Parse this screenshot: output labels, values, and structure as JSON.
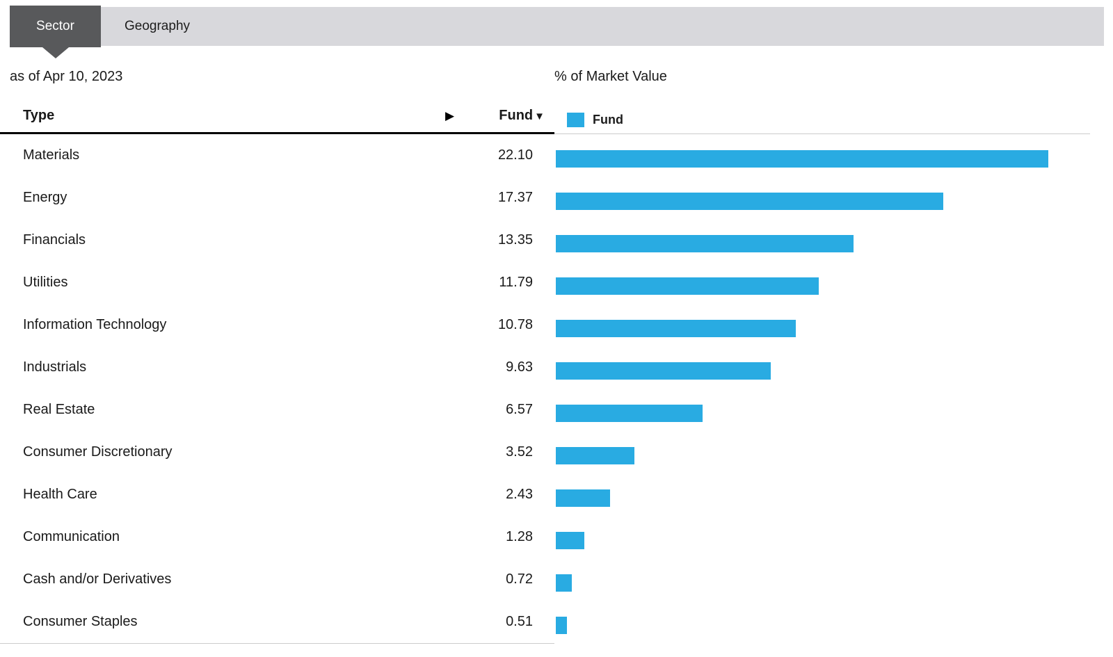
{
  "tabs": [
    {
      "id": "sector",
      "label": "Sector",
      "active": true
    },
    {
      "id": "geography",
      "label": "Geography",
      "active": false
    }
  ],
  "as_of": "as of Apr 10, 2023",
  "table_header": {
    "type": "Type",
    "fund": "Fund",
    "sort_indicator": "▼",
    "expand_icon": "▶"
  },
  "chart_header": {
    "title": "% of Market Value",
    "legend_label": "Fund"
  },
  "colors": {
    "bar": "#29abe2",
    "active_tab": "#58595b",
    "tab_strip": "#d8d8dc"
  },
  "chart_data": {
    "type": "bar",
    "orientation": "horizontal",
    "title": "% of Market Value",
    "series_name": "Fund",
    "categories": [
      "Materials",
      "Energy",
      "Financials",
      "Utilities",
      "Information Technology",
      "Industrials",
      "Real Estate",
      "Consumer Discretionary",
      "Health Care",
      "Communication",
      "Cash and/or Derivatives",
      "Consumer Staples"
    ],
    "values": [
      22.1,
      17.37,
      13.35,
      11.79,
      10.78,
      9.63,
      6.57,
      3.52,
      2.43,
      1.28,
      0.72,
      0.51
    ],
    "xlim": [
      0,
      22.1
    ],
    "grid": false,
    "legend_position": "top",
    "value_decimals": 2
  }
}
